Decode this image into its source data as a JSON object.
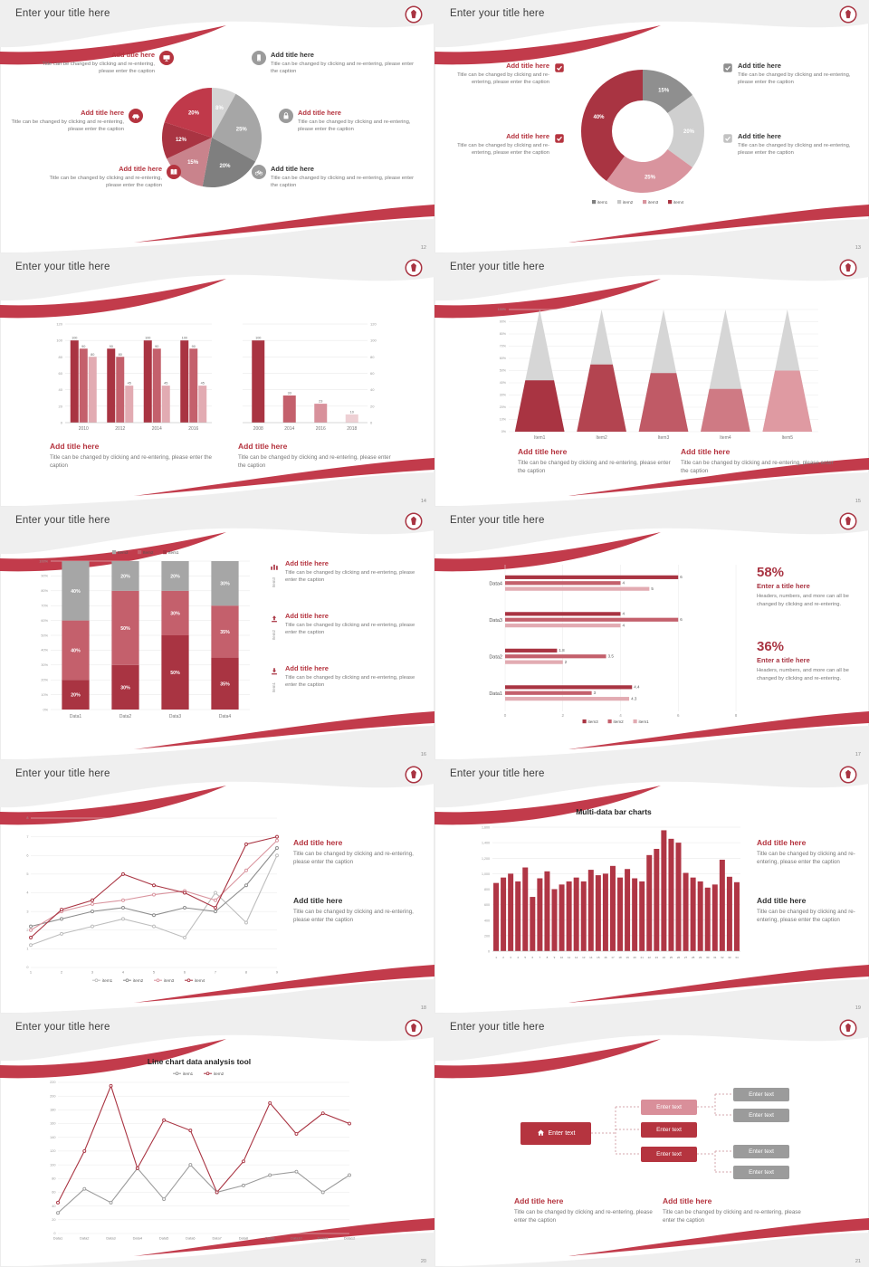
{
  "common": {
    "slide_title": "Enter your title here",
    "add_title": "Add title here",
    "caption": "Title can be changed by clicking and re-entering, please enter the caption"
  },
  "s12": {
    "page": "12",
    "chart": {
      "type": "pie",
      "values": [
        8,
        25,
        20,
        15,
        12,
        20
      ],
      "labels": [
        "8%",
        "25%",
        "20%",
        "15%",
        "12%",
        "20%"
      ],
      "colors": [
        "#d4d4d4",
        "#a6a6a6",
        "#7f7f7f",
        "#c9838c",
        "#a93442",
        "#c0394a"
      ]
    }
  },
  "s13": {
    "page": "13",
    "chart": {
      "type": "pie",
      "inner": 0.5,
      "values": [
        15,
        20,
        25,
        40
      ],
      "labels": [
        "15%",
        "20%",
        "25%",
        "40%"
      ],
      "colors": [
        "#8f8f8f",
        "#cfcfcf",
        "#d9949e",
        "#a93442"
      ],
      "legend": [
        {
          "label": "item1",
          "color": "#7f7f7f"
        },
        {
          "label": "item2",
          "color": "#c6c6c6"
        },
        {
          "label": "item3",
          "color": "#d9949e"
        },
        {
          "label": "item4",
          "color": "#a93442"
        }
      ]
    }
  },
  "s14": {
    "page": "14",
    "chart_left": {
      "type": "vbars",
      "categories": [
        "2010",
        "2012",
        "2014",
        "2016"
      ],
      "groups": [
        [
          100,
          90,
          80
        ],
        [
          90,
          80,
          45
        ],
        [
          100,
          90,
          45
        ],
        [
          100,
          90,
          45
        ]
      ],
      "colors": [
        "#a93442",
        "#c4606c",
        "#e2abb2"
      ],
      "ymax": 120,
      "yticks": [
        "0",
        "20",
        "40",
        "60",
        "80",
        "100",
        "120"
      ],
      "showValues": true,
      "axis": "left"
    },
    "chart_right": {
      "type": "vbars",
      "categories": [
        "2008",
        "2014",
        "2016",
        "2018"
      ],
      "groups": [
        [
          100
        ],
        [
          33
        ],
        [
          23
        ],
        [
          10
        ]
      ],
      "colors": [
        "#a93442"
      ],
      "barColors": [
        "#a93442",
        "#c4606c",
        "#d8919b",
        "#eed0d4"
      ],
      "ymax": 120,
      "yticks": [
        "0",
        "20",
        "40",
        "60",
        "80",
        "100",
        "120"
      ],
      "showValues": true,
      "axis": "right",
      "maxbw": 14
    }
  },
  "s15": {
    "page": "15",
    "chart": {
      "type": "cones",
      "categories": [
        "Item1",
        "Item2",
        "Item3",
        "Item4",
        "Item5"
      ],
      "fractions": [
        0.42,
        0.55,
        0.48,
        0.35,
        0.5
      ],
      "coneColor": "#d6d6d6",
      "fillColors": [
        "#a93442",
        "#b34450",
        "#c05a66",
        "#cf7a84",
        "#df9aa2"
      ],
      "yticks": [
        "0%",
        "10%",
        "20%",
        "30%",
        "40%",
        "50%",
        "60%",
        "70%",
        "80%",
        "90%",
        "100%"
      ]
    }
  },
  "s16": {
    "page": "16",
    "items": [
      {
        "tag": "Item3"
      },
      {
        "tag": "Item2"
      },
      {
        "tag": "Item1"
      }
    ],
    "chart": {
      "type": "stacked",
      "categories": [
        "Data1",
        "Data2",
        "Data3",
        "Data4"
      ],
      "series": [
        {
          "name": "Item1",
          "color": "#a93442",
          "values": [
            20,
            30,
            50,
            35
          ]
        },
        {
          "name": "Item2",
          "color": "#c4606c",
          "values": [
            40,
            50,
            30,
            35
          ]
        },
        {
          "name": "Item3",
          "color": "#a6a6a6",
          "values": [
            40,
            20,
            20,
            30
          ]
        }
      ],
      "legend": [
        {
          "label": "Item3",
          "color": "#a6a6a6"
        },
        {
          "label": "Item2",
          "color": "#c4606c"
        },
        {
          "label": "Item1",
          "color": "#a93442"
        }
      ],
      "yticks": [
        "0%",
        "10%",
        "20%",
        "30%",
        "40%",
        "50%",
        "60%",
        "70%",
        "80%",
        "90%",
        "100%"
      ]
    }
  },
  "s17": {
    "page": "17",
    "chart": {
      "type": "hbars",
      "categories": [
        "Data4",
        "Data3",
        "Data2",
        "Data1"
      ],
      "rows": [
        [
          6,
          4,
          5
        ],
        [
          4,
          6,
          4
        ],
        [
          1.8,
          3.5,
          2
        ],
        [
          4.4,
          3,
          4.3
        ]
      ],
      "colors": [
        "#a93442",
        "#c4606c",
        "#e2abb2"
      ],
      "xmax": 8,
      "xticks": [
        "0",
        "2",
        "4",
        "6",
        "8"
      ],
      "legend": [
        {
          "label": "item3",
          "color": "#a93442"
        },
        {
          "label": "item2",
          "color": "#c4606c"
        },
        {
          "label": "item1",
          "color": "#e2abb2"
        }
      ]
    },
    "stats": [
      {
        "pct": "58%",
        "title": "Enter a title here",
        "caption": "Headers, numbers, and more can all be changed by clicking and re-entering."
      },
      {
        "pct": "36%",
        "title": "Enter a title here",
        "caption": "Headers, numbers, and more can all be changed by clicking and re-entering."
      }
    ]
  },
  "s18": {
    "page": "18",
    "chart": {
      "type": "lines",
      "x": [
        "1",
        "2",
        "3",
        "4",
        "5",
        "6",
        "7",
        "8",
        "9"
      ],
      "ymax": 8,
      "yticks": [
        "0",
        "1",
        "2",
        "3",
        "4",
        "5",
        "6",
        "7",
        "8"
      ],
      "legendPos": "bottom",
      "series": [
        {
          "name": "item1",
          "color": "#bdbdbd",
          "values": [
            1.2,
            1.8,
            2.2,
            2.6,
            2.2,
            1.6,
            4.0,
            2.4,
            6.0
          ]
        },
        {
          "name": "item2",
          "color": "#8c8c8c",
          "values": [
            2.2,
            2.6,
            3.0,
            3.2,
            2.8,
            3.2,
            3.0,
            4.4,
            6.4
          ]
        },
        {
          "name": "item3",
          "color": "#d9949e",
          "values": [
            2.0,
            3.0,
            3.4,
            3.6,
            3.9,
            4.1,
            3.6,
            5.2,
            6.8
          ]
        },
        {
          "name": "item4",
          "color": "#a93442",
          "values": [
            1.6,
            3.1,
            3.6,
            5.0,
            4.4,
            4.0,
            3.2,
            6.6,
            7.0
          ]
        }
      ]
    }
  },
  "s19": {
    "page": "19",
    "title": "Multi-data bar charts",
    "chart": {
      "type": "vbars",
      "categories": [
        "1",
        "2",
        "3",
        "4",
        "5",
        "6",
        "7",
        "8",
        "9",
        "10",
        "11",
        "12",
        "13",
        "14",
        "15",
        "16",
        "17",
        "18",
        "19",
        "20",
        "21",
        "22",
        "23",
        "24",
        "25",
        "26",
        "27",
        "28",
        "29",
        "30",
        "31",
        "32",
        "33",
        "34"
      ],
      "values": [
        880,
        950,
        1000,
        900,
        1080,
        700,
        940,
        1030,
        800,
        860,
        900,
        950,
        900,
        1050,
        980,
        1000,
        1100,
        950,
        1060,
        940,
        900,
        1240,
        1320,
        1560,
        1450,
        1400,
        1010,
        950,
        900,
        820,
        860,
        1180,
        960,
        890
      ],
      "colors": [
        "#b03645"
      ],
      "ymax": 1600,
      "yticks": [
        "0",
        "200",
        "400",
        "600",
        "800",
        "1,000",
        "1,200",
        "1,400",
        "1,600"
      ],
      "axis": "left",
      "xfs": 3,
      "yfs": 3.6,
      "maxbw": 6
    }
  },
  "s20": {
    "page": "20",
    "title": "Line chart data analysis tool",
    "chart": {
      "type": "lines",
      "x": [
        "Data1",
        "Data2",
        "Data3",
        "Data4",
        "Data5",
        "Data6",
        "Data7",
        "Data8",
        "Data9",
        "Data10",
        "Data11",
        "Data12"
      ],
      "ymax": 220,
      "yticks": [
        "0",
        "20",
        "40",
        "60",
        "80",
        "100",
        "120",
        "140",
        "160",
        "180",
        "200",
        "220"
      ],
      "legendPos": "top",
      "series": [
        {
          "name": "item1",
          "color": "#9b9b9b",
          "values": [
            30,
            65,
            45,
            95,
            50,
            100,
            60,
            70,
            85,
            90,
            60,
            85
          ]
        },
        {
          "name": "item2",
          "color": "#a93442",
          "values": [
            45,
            120,
            215,
            95,
            165,
            150,
            60,
            105,
            190,
            145,
            175,
            160
          ]
        }
      ]
    }
  },
  "s21": {
    "page": "21",
    "node_label": "Enter text"
  }
}
